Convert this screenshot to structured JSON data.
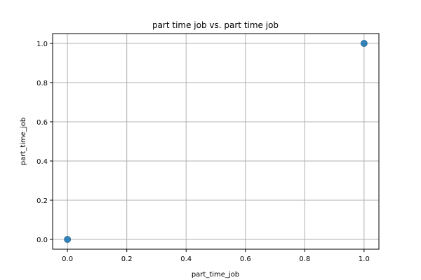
{
  "chart_data": {
    "type": "scatter",
    "title": "part time job vs. part time job",
    "xlabel": "part_time_job",
    "ylabel": "part_time_job",
    "xlim": [
      -0.05,
      1.05
    ],
    "ylim": [
      -0.05,
      1.05
    ],
    "xticks": [
      0.0,
      0.2,
      0.4,
      0.6,
      0.8,
      1.0
    ],
    "xtick_labels": [
      "0.0",
      "0.2",
      "0.4",
      "0.6",
      "0.8",
      "1.0"
    ],
    "yticks": [
      0.0,
      0.2,
      0.4,
      0.6,
      0.8,
      1.0
    ],
    "ytick_labels": [
      "0.0",
      "0.2",
      "0.4",
      "0.6",
      "0.8",
      "1.0"
    ],
    "grid": true,
    "legend": "none",
    "points": [
      {
        "x": 0,
        "y": 0
      },
      {
        "x": 1,
        "y": 1
      }
    ],
    "marker_color": "#1f77b4",
    "marker_edge_color": "#1a5f8f"
  }
}
